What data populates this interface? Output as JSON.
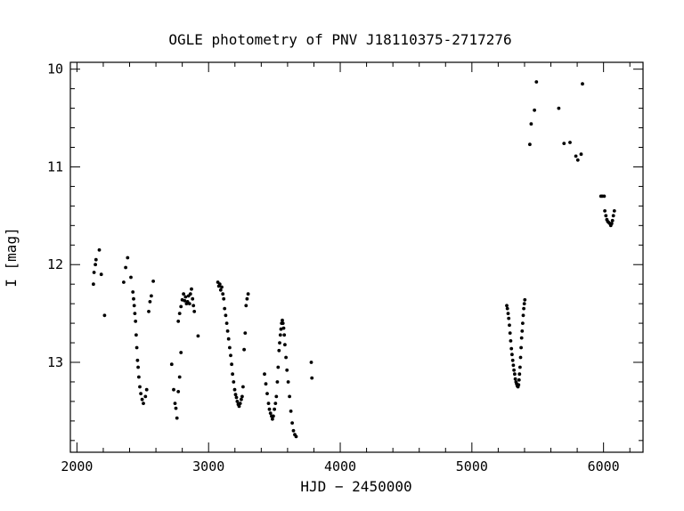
{
  "chart_data": {
    "type": "scatter",
    "title": "OGLE photometry of PNV J18110375-2717276",
    "xlabel": "HJD − 2450000",
    "ylabel": "I [mag]",
    "xlim": [
      1950,
      6300
    ],
    "ylim": [
      13.92,
      9.93
    ],
    "y_inverted": true,
    "x_ticks": [
      2000,
      3000,
      4000,
      5000,
      6000
    ],
    "y_ticks": [
      10,
      11,
      12,
      13
    ],
    "x_minor_step": 200,
    "y_minor_step": 0.2,
    "grid": false,
    "legend": "none",
    "marker_color": "#000000",
    "series": [
      {
        "points": [
          [
            2125,
            12.2
          ],
          [
            2130,
            12.08
          ],
          [
            2140,
            12.0
          ],
          [
            2145,
            11.95
          ],
          [
            2170,
            11.85
          ],
          [
            2185,
            12.1
          ],
          [
            2210,
            12.52
          ],
          [
            2355,
            12.18
          ],
          [
            2370,
            12.03
          ],
          [
            2385,
            11.93
          ],
          [
            2410,
            12.13
          ],
          [
            2425,
            12.28
          ],
          [
            2430,
            12.35
          ],
          [
            2435,
            12.42
          ],
          [
            2440,
            12.5
          ],
          [
            2445,
            12.58
          ],
          [
            2450,
            12.72
          ],
          [
            2455,
            12.85
          ],
          [
            2460,
            12.98
          ],
          [
            2465,
            13.05
          ],
          [
            2470,
            13.15
          ],
          [
            2478,
            13.25
          ],
          [
            2485,
            13.32
          ],
          [
            2495,
            13.38
          ],
          [
            2505,
            13.42
          ],
          [
            2520,
            13.35
          ],
          [
            2530,
            13.28
          ],
          [
            2545,
            12.48
          ],
          [
            2555,
            12.38
          ],
          [
            2565,
            12.32
          ],
          [
            2580,
            12.17
          ],
          [
            2720,
            13.02
          ],
          [
            2735,
            13.28
          ],
          [
            2745,
            13.42
          ],
          [
            2752,
            13.47
          ],
          [
            2760,
            13.57
          ],
          [
            2770,
            13.3
          ],
          [
            2780,
            13.15
          ],
          [
            2790,
            12.9
          ],
          [
            2770,
            12.58
          ],
          [
            2780,
            12.5
          ],
          [
            2790,
            12.43
          ],
          [
            2800,
            12.36
          ],
          [
            2810,
            12.3
          ],
          [
            2818,
            12.37
          ],
          [
            2825,
            12.33
          ],
          [
            2832,
            12.4
          ],
          [
            2840,
            12.38
          ],
          [
            2848,
            12.32
          ],
          [
            2855,
            12.4
          ],
          [
            2862,
            12.3
          ],
          [
            2870,
            12.25
          ],
          [
            2878,
            12.35
          ],
          [
            2885,
            12.42
          ],
          [
            2892,
            12.48
          ],
          [
            2920,
            12.73
          ],
          [
            3070,
            12.18
          ],
          [
            3078,
            12.22
          ],
          [
            3085,
            12.2
          ],
          [
            3092,
            12.26
          ],
          [
            3100,
            12.23
          ],
          [
            3108,
            12.3
          ],
          [
            3115,
            12.35
          ],
          [
            3122,
            12.45
          ],
          [
            3130,
            12.52
          ],
          [
            3138,
            12.6
          ],
          [
            3145,
            12.68
          ],
          [
            3152,
            12.76
          ],
          [
            3160,
            12.85
          ],
          [
            3168,
            12.93
          ],
          [
            3175,
            13.02
          ],
          [
            3182,
            13.12
          ],
          [
            3190,
            13.2
          ],
          [
            3198,
            13.28
          ],
          [
            3205,
            13.33
          ],
          [
            3212,
            13.36
          ],
          [
            3218,
            13.4
          ],
          [
            3225,
            13.43
          ],
          [
            3232,
            13.45
          ],
          [
            3240,
            13.42
          ],
          [
            3248,
            13.38
          ],
          [
            3255,
            13.35
          ],
          [
            3262,
            13.25
          ],
          [
            3270,
            12.87
          ],
          [
            3278,
            12.7
          ],
          [
            3285,
            12.42
          ],
          [
            3292,
            12.35
          ],
          [
            3300,
            12.3
          ],
          [
            3425,
            13.12
          ],
          [
            3435,
            13.22
          ],
          [
            3445,
            13.32
          ],
          [
            3455,
            13.42
          ],
          [
            3462,
            13.48
          ],
          [
            3470,
            13.52
          ],
          [
            3478,
            13.55
          ],
          [
            3485,
            13.58
          ],
          [
            3492,
            13.55
          ],
          [
            3500,
            13.48
          ],
          [
            3508,
            13.42
          ],
          [
            3515,
            13.35
          ],
          [
            3522,
            13.2
          ],
          [
            3528,
            13.05
          ],
          [
            3535,
            12.88
          ],
          [
            3540,
            12.8
          ],
          [
            3545,
            12.72
          ],
          [
            3550,
            12.66
          ],
          [
            3555,
            12.6
          ],
          [
            3560,
            12.57
          ],
          [
            3565,
            12.6
          ],
          [
            3570,
            12.65
          ],
          [
            3575,
            12.72
          ],
          [
            3580,
            12.82
          ],
          [
            3588,
            12.95
          ],
          [
            3595,
            13.08
          ],
          [
            3605,
            13.2
          ],
          [
            3615,
            13.35
          ],
          [
            3625,
            13.5
          ],
          [
            3635,
            13.62
          ],
          [
            3645,
            13.7
          ],
          [
            3655,
            13.74
          ],
          [
            3665,
            13.76
          ],
          [
            3780,
            13.0
          ],
          [
            3785,
            13.16
          ],
          [
            5265,
            12.42
          ],
          [
            5270,
            12.45
          ],
          [
            5275,
            12.5
          ],
          [
            5280,
            12.55
          ],
          [
            5285,
            12.62
          ],
          [
            5290,
            12.7
          ],
          [
            5295,
            12.78
          ],
          [
            5300,
            12.86
          ],
          [
            5305,
            12.92
          ],
          [
            5310,
            12.98
          ],
          [
            5315,
            13.03
          ],
          [
            5320,
            13.08
          ],
          [
            5325,
            13.12
          ],
          [
            5330,
            13.17
          ],
          [
            5335,
            13.2
          ],
          [
            5340,
            13.22
          ],
          [
            5345,
            13.24
          ],
          [
            5350,
            13.25
          ],
          [
            5355,
            13.23
          ],
          [
            5358,
            13.18
          ],
          [
            5362,
            13.12
          ],
          [
            5366,
            13.05
          ],
          [
            5370,
            12.95
          ],
          [
            5374,
            12.85
          ],
          [
            5378,
            12.75
          ],
          [
            5382,
            12.68
          ],
          [
            5386,
            12.6
          ],
          [
            5390,
            12.52
          ],
          [
            5394,
            12.45
          ],
          [
            5398,
            12.4
          ],
          [
            5402,
            12.36
          ],
          [
            5440,
            10.77
          ],
          [
            5450,
            10.56
          ],
          [
            5475,
            10.42
          ],
          [
            5490,
            10.13
          ],
          [
            5660,
            10.4
          ],
          [
            5700,
            10.76
          ],
          [
            5745,
            10.75
          ],
          [
            5790,
            10.89
          ],
          [
            5805,
            10.93
          ],
          [
            5830,
            10.87
          ],
          [
            5840,
            10.15
          ],
          [
            5980,
            11.3
          ],
          [
            5990,
            11.3
          ],
          [
            6005,
            11.3
          ],
          [
            6010,
            11.45
          ],
          [
            6018,
            11.5
          ],
          [
            6025,
            11.54
          ],
          [
            6032,
            11.56
          ],
          [
            6040,
            11.57
          ],
          [
            6048,
            11.58
          ],
          [
            6055,
            11.6
          ],
          [
            6062,
            11.58
          ],
          [
            6068,
            11.55
          ],
          [
            6075,
            11.5
          ],
          [
            6082,
            11.45
          ]
        ]
      }
    ]
  }
}
